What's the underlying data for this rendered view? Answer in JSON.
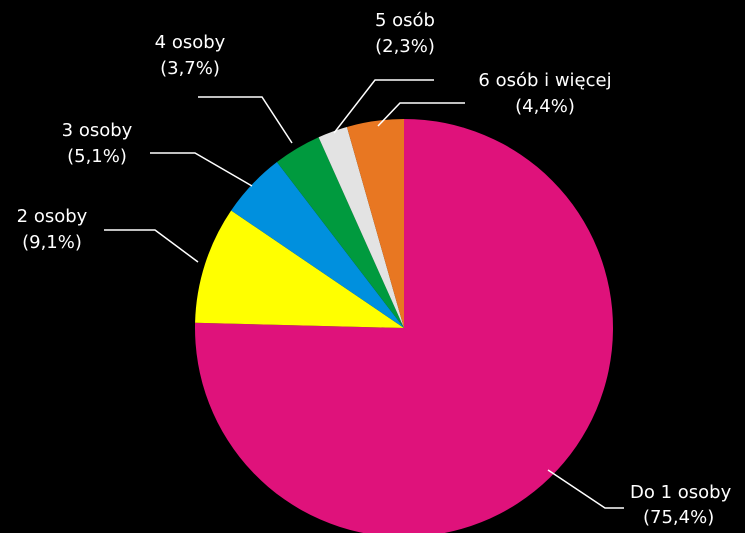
{
  "chart_data": {
    "type": "pie",
    "title": "",
    "slices": [
      {
        "label": "Do 1 osoby",
        "value_text": "(75,4%)",
        "value": 75.4,
        "color": "#df127b"
      },
      {
        "label": "2 osoby",
        "value_text": "(9,1%)",
        "value": 9.1,
        "color": "#ffff00"
      },
      {
        "label": "3 osoby",
        "value_text": "(5,1%)",
        "value": 5.1,
        "color": "#0090de"
      },
      {
        "label": "4 osoby",
        "value_text": "(3,7%)",
        "value": 3.7,
        "color": "#009a3e"
      },
      {
        "label": "5 osób",
        "value_text": "(2,3%)",
        "value": 2.3,
        "color": "#e3e3e3"
      },
      {
        "label": "6 osób i więcej",
        "value_text": "(4,4%)",
        "value": 4.4,
        "color": "#e87722"
      }
    ],
    "start_angle": "12 o'clock",
    "direction": "clockwise",
    "legend": "none",
    "label_style": "outside with leader lines"
  }
}
